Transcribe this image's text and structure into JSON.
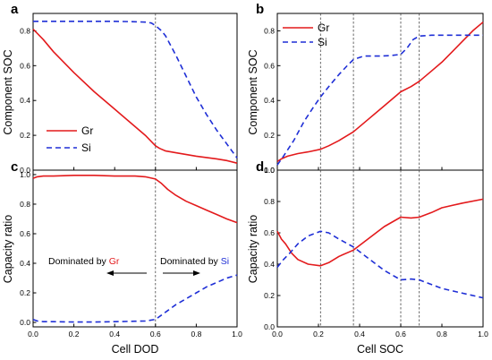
{
  "colors": {
    "gr": "#e31a1c",
    "si": "#1f2fd6"
  },
  "panels": {
    "a": {
      "letter": "a"
    },
    "b": {
      "letter": "b"
    },
    "c": {
      "letter": "c"
    },
    "d": {
      "letter": "d"
    }
  },
  "labels": {
    "component_soc": "Component SOC",
    "capacity_ratio": "Capacity ratio",
    "cell_dod": "Cell DOD",
    "cell_soc": "Cell SOC"
  },
  "legend": {
    "gr": "Gr",
    "si": "Si"
  },
  "annotations": {
    "dominated_by": "Dominated by ",
    "gr": "Gr",
    "si": "Si"
  },
  "chart_data": [
    {
      "panel": "a",
      "type": "line",
      "xlabel": "",
      "ylabel": "Component SOC",
      "xlim": [
        0,
        1
      ],
      "ylim": [
        0,
        0.9
      ],
      "yticks": [
        "0.0",
        "0.2",
        "0.4",
        "0.6",
        "0.8"
      ],
      "xticks": [],
      "vlines": [
        0.6
      ],
      "legend": "lower-left",
      "series": [
        {
          "name": "Gr",
          "style": "solid",
          "color": "#e31a1c",
          "x": [
            0,
            0.05,
            0.1,
            0.2,
            0.3,
            0.4,
            0.5,
            0.55,
            0.6,
            0.62,
            0.65,
            0.7,
            0.8,
            0.9,
            0.95,
            1.0
          ],
          "y": [
            0.81,
            0.75,
            0.68,
            0.56,
            0.45,
            0.35,
            0.25,
            0.2,
            0.14,
            0.125,
            0.11,
            0.1,
            0.08,
            0.065,
            0.055,
            0.04
          ]
        },
        {
          "name": "Si",
          "style": "dashed",
          "color": "#1f2fd6",
          "x": [
            0,
            0.1,
            0.2,
            0.3,
            0.4,
            0.5,
            0.55,
            0.58,
            0.6,
            0.63,
            0.65,
            0.7,
            0.75,
            0.8,
            0.85,
            0.9,
            0.95,
            1.0
          ],
          "y": [
            0.855,
            0.855,
            0.855,
            0.855,
            0.855,
            0.852,
            0.85,
            0.845,
            0.83,
            0.8,
            0.77,
            0.66,
            0.54,
            0.42,
            0.32,
            0.23,
            0.15,
            0.07
          ]
        }
      ]
    },
    {
      "panel": "b",
      "type": "line",
      "xlabel": "",
      "ylabel": "Component SOC",
      "xlim": [
        0,
        1
      ],
      "ylim": [
        0,
        0.9
      ],
      "yticks": [
        "0.0",
        "0.2",
        "0.4",
        "0.6",
        "0.8"
      ],
      "xticks": [],
      "vlines": [
        0.21,
        0.37,
        0.6,
        0.69
      ],
      "legend": "top-left",
      "series": [
        {
          "name": "Gr",
          "style": "solid",
          "color": "#e31a1c",
          "x": [
            0,
            0.02,
            0.05,
            0.1,
            0.15,
            0.21,
            0.25,
            0.3,
            0.37,
            0.45,
            0.52,
            0.6,
            0.65,
            0.69,
            0.75,
            0.8,
            0.85,
            0.9,
            0.95,
            1.0
          ],
          "y": [
            0.05,
            0.065,
            0.08,
            0.095,
            0.105,
            0.12,
            0.14,
            0.17,
            0.22,
            0.3,
            0.37,
            0.45,
            0.48,
            0.51,
            0.57,
            0.62,
            0.68,
            0.74,
            0.8,
            0.85
          ]
        },
        {
          "name": "Si",
          "style": "dashed",
          "color": "#1f2fd6",
          "x": [
            0,
            0.03,
            0.08,
            0.13,
            0.18,
            0.21,
            0.25,
            0.3,
            0.34,
            0.37,
            0.42,
            0.5,
            0.55,
            0.6,
            0.63,
            0.66,
            0.69,
            0.75,
            0.8,
            0.9,
            1.0
          ],
          "y": [
            0.03,
            0.08,
            0.17,
            0.28,
            0.37,
            0.42,
            0.48,
            0.55,
            0.6,
            0.635,
            0.655,
            0.655,
            0.658,
            0.665,
            0.7,
            0.75,
            0.77,
            0.775,
            0.775,
            0.775,
            0.775
          ]
        }
      ]
    },
    {
      "panel": "c",
      "type": "line",
      "xlabel": "Cell DOD",
      "ylabel": "Capacity ratio",
      "xlim": [
        0,
        1
      ],
      "ylim": [
        -0.03,
        1.03
      ],
      "yticks": [
        "0.0",
        "0.2",
        "0.4",
        "0.6",
        "0.8",
        "1.0"
      ],
      "xticks": [
        "0.0",
        "0.2",
        "0.4",
        "0.6",
        "0.8",
        "1.0"
      ],
      "vlines": [
        0.6
      ],
      "series": [
        {
          "name": "Gr",
          "style": "solid",
          "color": "#e31a1c",
          "x": [
            0,
            0.02,
            0.05,
            0.1,
            0.2,
            0.3,
            0.4,
            0.5,
            0.55,
            0.6,
            0.63,
            0.66,
            0.7,
            0.75,
            0.8,
            0.85,
            0.9,
            0.95,
            1.0
          ],
          "y": [
            0.975,
            0.985,
            0.99,
            0.99,
            0.995,
            0.995,
            0.99,
            0.99,
            0.985,
            0.97,
            0.94,
            0.9,
            0.86,
            0.82,
            0.79,
            0.76,
            0.73,
            0.7,
            0.675
          ]
        },
        {
          "name": "Si",
          "style": "dashed",
          "color": "#1f2fd6",
          "x": [
            0,
            0.02,
            0.05,
            0.1,
            0.2,
            0.3,
            0.4,
            0.5,
            0.55,
            0.6,
            0.63,
            0.66,
            0.7,
            0.75,
            0.8,
            0.85,
            0.9,
            0.95,
            1.0
          ],
          "y": [
            0.02,
            0.01,
            0.005,
            0.005,
            0.003,
            0.003,
            0.005,
            0.008,
            0.01,
            0.02,
            0.05,
            0.08,
            0.12,
            0.16,
            0.2,
            0.24,
            0.27,
            0.3,
            0.32
          ]
        }
      ]
    },
    {
      "panel": "d",
      "type": "line",
      "xlabel": "Cell SOC",
      "ylabel": "Capacity ratio",
      "xlim": [
        0,
        1
      ],
      "ylim": [
        0,
        1.0
      ],
      "yticks": [
        "0.0",
        "0.2",
        "0.4",
        "0.6",
        "0.8",
        "1.0"
      ],
      "xticks": [
        "0.0",
        "0.2",
        "0.4",
        "0.6",
        "0.8",
        "1.0"
      ],
      "vlines": [
        0.21,
        0.37,
        0.6,
        0.69
      ],
      "series": [
        {
          "name": "Gr",
          "style": "solid",
          "color": "#e31a1c",
          "x": [
            0,
            0.02,
            0.04,
            0.07,
            0.1,
            0.15,
            0.21,
            0.25,
            0.3,
            0.37,
            0.45,
            0.52,
            0.6,
            0.65,
            0.69,
            0.75,
            0.8,
            0.9,
            1.0
          ],
          "y": [
            0.61,
            0.56,
            0.53,
            0.47,
            0.43,
            0.4,
            0.39,
            0.41,
            0.45,
            0.49,
            0.57,
            0.64,
            0.7,
            0.695,
            0.7,
            0.73,
            0.76,
            0.79,
            0.815
          ]
        },
        {
          "name": "Si",
          "style": "dashed",
          "color": "#1f2fd6",
          "x": [
            0,
            0.03,
            0.06,
            0.1,
            0.15,
            0.21,
            0.25,
            0.3,
            0.37,
            0.45,
            0.52,
            0.6,
            0.65,
            0.69,
            0.75,
            0.8,
            0.9,
            1.0
          ],
          "y": [
            0.38,
            0.43,
            0.47,
            0.53,
            0.58,
            0.61,
            0.6,
            0.56,
            0.51,
            0.43,
            0.36,
            0.3,
            0.305,
            0.3,
            0.27,
            0.245,
            0.215,
            0.185
          ]
        }
      ]
    }
  ]
}
